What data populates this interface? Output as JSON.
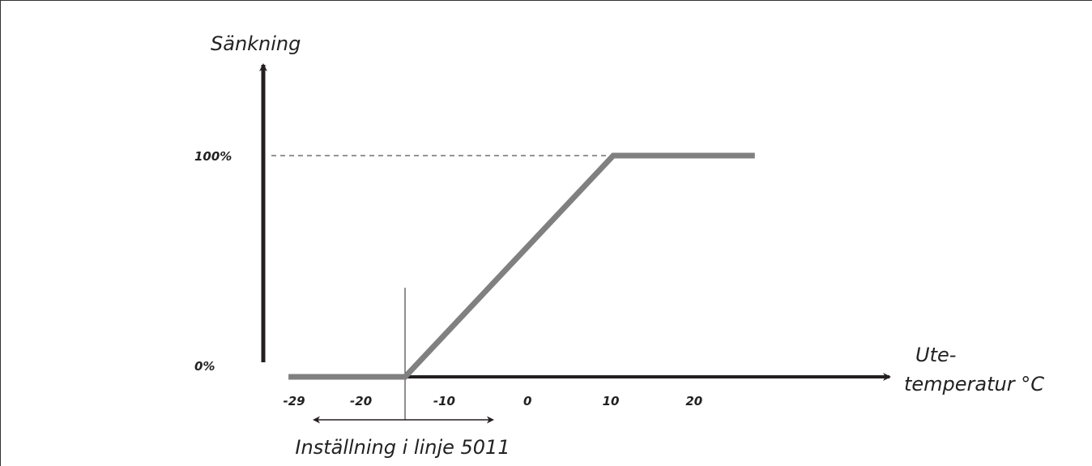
{
  "chart_data": {
    "type": "line",
    "ylabel": "Sänkning",
    "xlabel_lines": [
      "Ute-",
      "temperatur °C"
    ],
    "x_ticks": [
      "-29",
      "-20",
      "-10",
      "0",
      "10",
      "20"
    ],
    "y_ticks": [
      "0%",
      "100%"
    ],
    "series": [
      {
        "x": [
          -29,
          -15,
          10,
          27
        ],
        "y": [
          0,
          0,
          100,
          100
        ]
      }
    ],
    "setpoint_x": -15,
    "setpoint_label": "Inställning i linje 5011",
    "xlim": [
      -29,
      35
    ],
    "ylim": [
      0,
      100
    ],
    "colors": {
      "series": "#808080",
      "axis": "#231f20",
      "guide": "#555555"
    }
  }
}
